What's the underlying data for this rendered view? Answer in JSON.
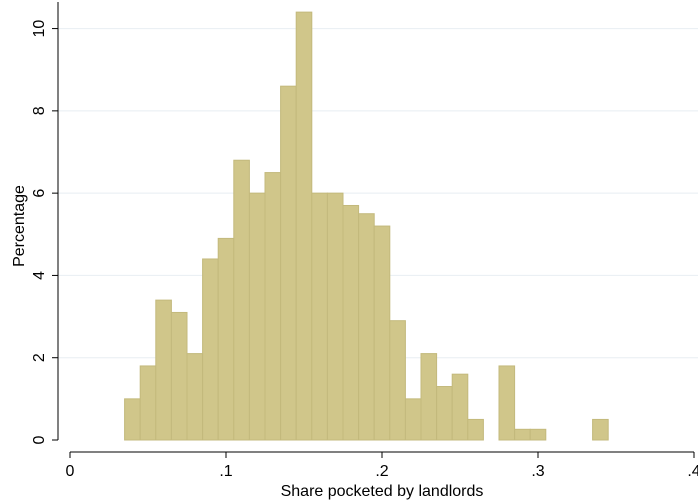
{
  "chart_data": {
    "type": "bar",
    "subtype": "histogram",
    "xlabel": "Share pocketed by landlords",
    "ylabel": "Percentage",
    "xlim": [
      0,
      0.4
    ],
    "ylim": [
      0,
      10.5
    ],
    "x_ticks": [
      0,
      0.1,
      0.2,
      0.3,
      0.4
    ],
    "x_tick_labels": [
      "0",
      ".1",
      ".2",
      ".3",
      ".4"
    ],
    "y_ticks": [
      0,
      2,
      4,
      6,
      8,
      10
    ],
    "y_tick_labels": [
      "0",
      "2",
      "4",
      "6",
      "8",
      "10"
    ],
    "grid": "horizontal",
    "bin_width": 0.01,
    "bar_color": "#d0c68a",
    "bar_edge_color": "#c3b97c",
    "bins": [
      {
        "x": 0.04,
        "value": 1.0
      },
      {
        "x": 0.05,
        "value": 1.8
      },
      {
        "x": 0.06,
        "value": 3.4
      },
      {
        "x": 0.07,
        "value": 3.1
      },
      {
        "x": 0.08,
        "value": 2.1
      },
      {
        "x": 0.09,
        "value": 4.4
      },
      {
        "x": 0.1,
        "value": 4.9
      },
      {
        "x": 0.11,
        "value": 6.8
      },
      {
        "x": 0.12,
        "value": 6.0
      },
      {
        "x": 0.13,
        "value": 6.5
      },
      {
        "x": 0.14,
        "value": 8.6
      },
      {
        "x": 0.15,
        "value": 10.4
      },
      {
        "x": 0.16,
        "value": 6.0
      },
      {
        "x": 0.17,
        "value": 6.0
      },
      {
        "x": 0.18,
        "value": 5.7
      },
      {
        "x": 0.19,
        "value": 5.5
      },
      {
        "x": 0.2,
        "value": 5.2
      },
      {
        "x": 0.21,
        "value": 2.9
      },
      {
        "x": 0.22,
        "value": 1.0
      },
      {
        "x": 0.23,
        "value": 2.1
      },
      {
        "x": 0.24,
        "value": 1.3
      },
      {
        "x": 0.25,
        "value": 1.6
      },
      {
        "x": 0.26,
        "value": 0.5
      },
      {
        "x": 0.28,
        "value": 1.8
      },
      {
        "x": 0.29,
        "value": 0.26
      },
      {
        "x": 0.3,
        "value": 0.26
      },
      {
        "x": 0.34,
        "value": 0.5
      }
    ]
  }
}
